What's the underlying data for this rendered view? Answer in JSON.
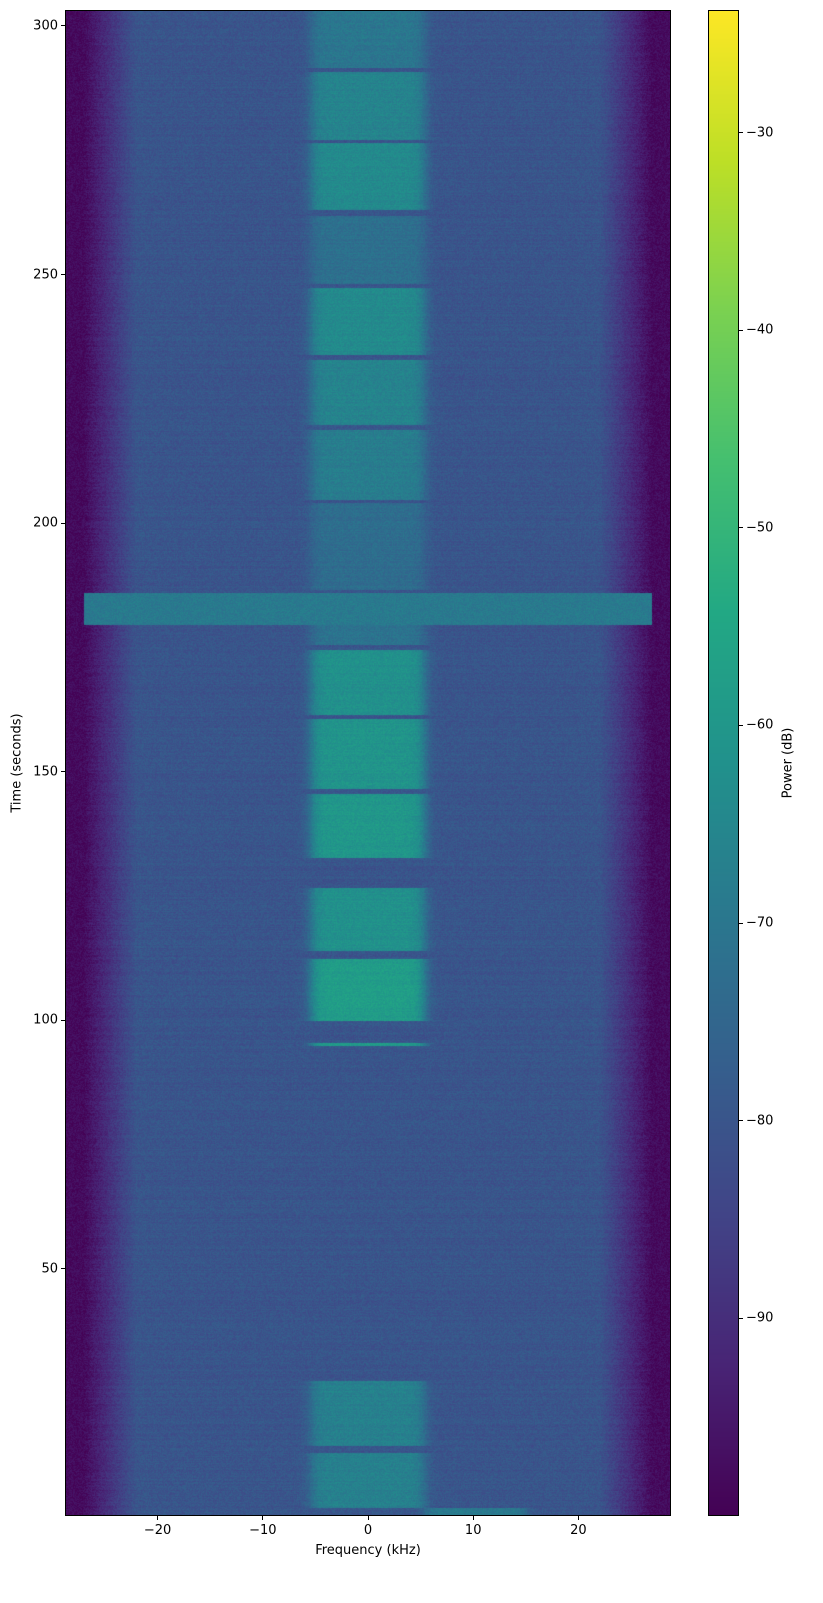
{
  "chart_data": {
    "type": "heatmap",
    "subtype": "spectrogram",
    "xlabel": "Frequency (kHz)",
    "ylabel": "Time (seconds)",
    "colorbar_label": "Power (dB)",
    "colormap": "viridis",
    "xlim": [
      -28.8,
      28.8
    ],
    "ylim": [
      0.3,
      303.2
    ],
    "clim": [
      -100,
      -23.8
    ],
    "xticks": [
      -20,
      -10,
      0,
      10,
      20
    ],
    "yticks": [
      50,
      100,
      150,
      200,
      250,
      300
    ],
    "cticks": [
      -30,
      -40,
      -50,
      -60,
      -70,
      -80,
      -90
    ],
    "background_power_db": -80,
    "band_edge_rolloff_khz": [
      22,
      27
    ],
    "signal_band_khz": [
      -5.4,
      5.4
    ],
    "signal_segments": [
      {
        "t": [
          291.6,
          303.2
        ],
        "power_db": -70
      },
      {
        "t": [
          277.1,
          290.7
        ],
        "power_db": -66
      },
      {
        "t": [
          263.0,
          276.5
        ],
        "power_db": -64
      },
      {
        "t": [
          248.0,
          261.8
        ],
        "power_db": -72
      },
      {
        "t": [
          233.9,
          247.3
        ],
        "power_db": -64
      },
      {
        "t": [
          219.8,
          232.9
        ],
        "power_db": -66
      },
      {
        "t": [
          204.7,
          218.8
        ],
        "power_db": -68
      },
      {
        "t": [
          186.5,
          204.0
        ],
        "power_db": -73
      },
      {
        "t": [
          175.5,
          179.5
        ],
        "power_db": -71
      },
      {
        "t": [
          161.5,
          174.5
        ],
        "power_db": -62
      },
      {
        "t": [
          146.6,
          160.5
        ],
        "power_db": -61
      },
      {
        "t": [
          132.7,
          145.6
        ],
        "power_db": -60
      },
      {
        "t": [
          114.0,
          126.7
        ],
        "power_db": -62
      },
      {
        "t": [
          99.8,
          112.3
        ],
        "power_db": -58
      },
      {
        "t": [
          94.8,
          95.5
        ],
        "power_db": -58
      },
      {
        "t": [
          14.3,
          27.4
        ],
        "power_db": -67
      },
      {
        "t": [
          2.0,
          13.0
        ],
        "power_db": -67
      }
    ],
    "wideband_segments": [
      {
        "t": [
          179.5,
          186.0
        ],
        "f": [
          -28.8,
          28.8
        ],
        "power_db": -69
      },
      {
        "t": [
          0.3,
          2.0
        ],
        "f": [
          5.4,
          15.0
        ],
        "power_db": -69
      }
    ]
  }
}
